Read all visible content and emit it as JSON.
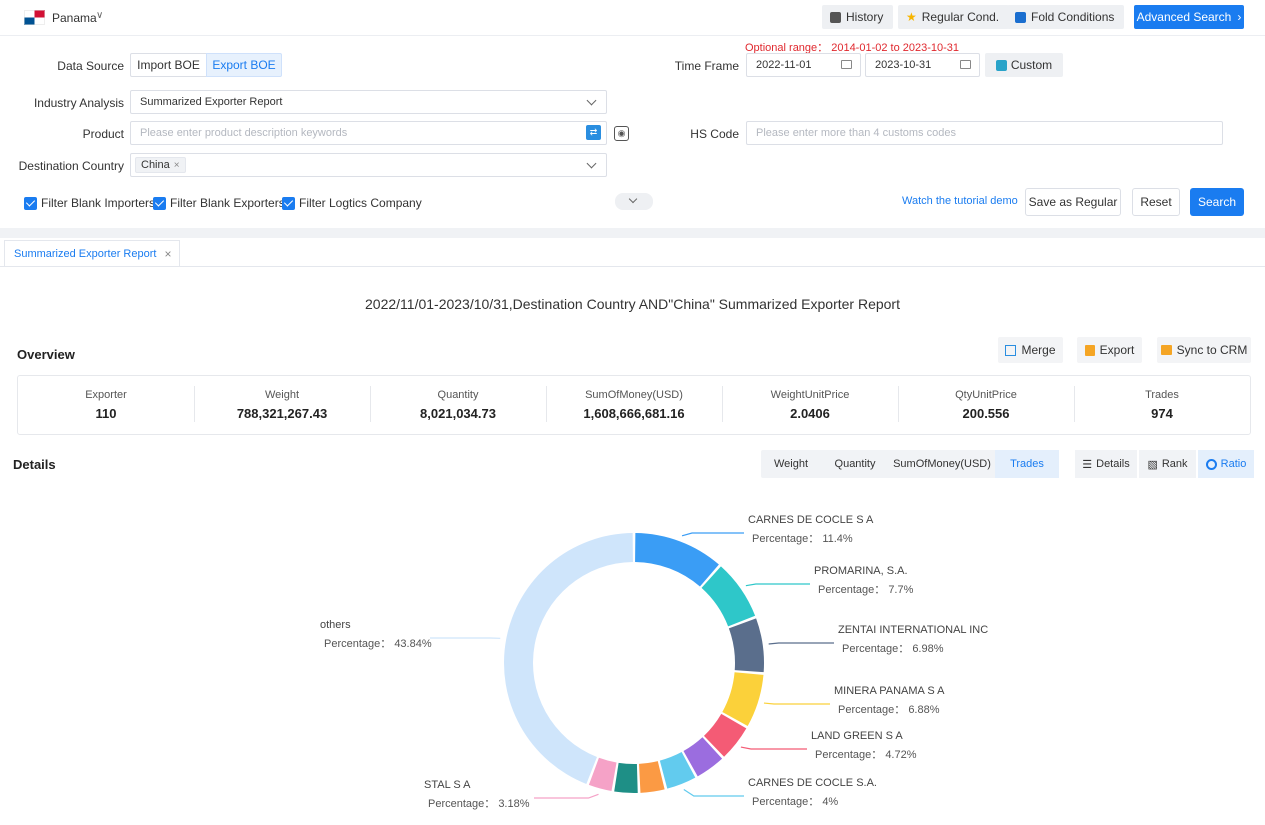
{
  "topbar": {
    "country": "Panama",
    "history": "History",
    "regular_cond": "Regular Cond.",
    "fold_conditions": "Fold Conditions",
    "advanced_search": "Advanced Search"
  },
  "filter": {
    "optional_range": "Optional range： 2014-01-02 to 2023-10-31",
    "data_source_label": "Data Source",
    "import_boe": "Import BOE",
    "export_boe": "Export BOE",
    "time_frame_label": "Time Frame",
    "date_from": "2022-11-01",
    "date_to": "2023-10-31",
    "custom": "Custom",
    "industry_label": "Industry Analysis",
    "industry_value": "Summarized Exporter Report",
    "product_label": "Product",
    "product_placeholder": "Please enter product description keywords",
    "hs_label": "HS Code",
    "hs_placeholder": "Please enter more than 4 customs codes",
    "destination_label": "Destination Country",
    "destination_tag": "China",
    "chk_blank_importers": "Filter Blank Importers",
    "chk_blank_exporters": "Filter Blank Exporters",
    "chk_logistics": "Filter Logtics Company",
    "tutorial": "Watch the tutorial demo",
    "save_regular": "Save as Regular",
    "reset": "Reset",
    "search": "Search"
  },
  "report": {
    "tab_label": "Summarized Exporter Report",
    "title": "2022/11/01-2023/10/31,Destination Country AND\"China\" Summarized Exporter Report",
    "overview": "Overview",
    "merge": "Merge",
    "export": "Export",
    "sync_crm": "Sync to CRM",
    "stats": [
      {
        "label": "Exporter",
        "value": "110"
      },
      {
        "label": "Weight",
        "value": "788,321,267.43"
      },
      {
        "label": "Quantity",
        "value": "8,021,034.73"
      },
      {
        "label": "SumOfMoney(USD)",
        "value": "1,608,666,681.16"
      },
      {
        "label": "WeightUnitPrice",
        "value": "2.0406"
      },
      {
        "label": "QtyUnitPrice",
        "value": "200.556"
      },
      {
        "label": "Trades",
        "value": "974"
      }
    ],
    "details": "Details",
    "metric_tabs": [
      "Weight",
      "Quantity",
      "SumOfMoney(USD)",
      "Trades"
    ],
    "metric_active": "Trades",
    "view_tabs": [
      "Details",
      "Rank",
      "Ratio"
    ],
    "view_active": "Ratio"
  },
  "colors": {
    "primary": "#1a7cf0"
  },
  "chart_data": {
    "type": "pie",
    "variant": "donut",
    "percentage_label": "Percentage：",
    "series": [
      {
        "name": "CARNES DE COCLE S A",
        "value": 11.4,
        "label": "11.4%",
        "color": "#3a9df5"
      },
      {
        "name": "PROMARINA, S.A.",
        "value": 7.7,
        "label": "7.7%",
        "color": "#2ec7c9"
      },
      {
        "name": "ZENTAI INTERNATIONAL INC",
        "value": 6.98,
        "label": "6.98%",
        "color": "#5a6e8c"
      },
      {
        "name": "MINERA PANAMA S A",
        "value": 6.88,
        "label": "6.88%",
        "color": "#fbd13a"
      },
      {
        "name": "LAND GREEN S A",
        "value": 4.72,
        "label": "4.72%",
        "color": "#f45b75"
      },
      {
        "name": "",
        "value": 4.0,
        "color": "#9b6ddf"
      },
      {
        "name": "CARNES DE COCLE S.A.",
        "value": 4.0,
        "label": "4%",
        "color": "#62cbee"
      },
      {
        "name": "",
        "value": 3.3,
        "color": "#fb9a44"
      },
      {
        "name": "",
        "value": 3.2,
        "color": "#1e8f86"
      },
      {
        "name": "STAL S A",
        "value": 3.18,
        "label": "3.18%",
        "color": "#f5a2c7"
      },
      {
        "name": "others",
        "value": 43.84,
        "label": "43.84%",
        "color": "#cfe5fb"
      }
    ]
  }
}
